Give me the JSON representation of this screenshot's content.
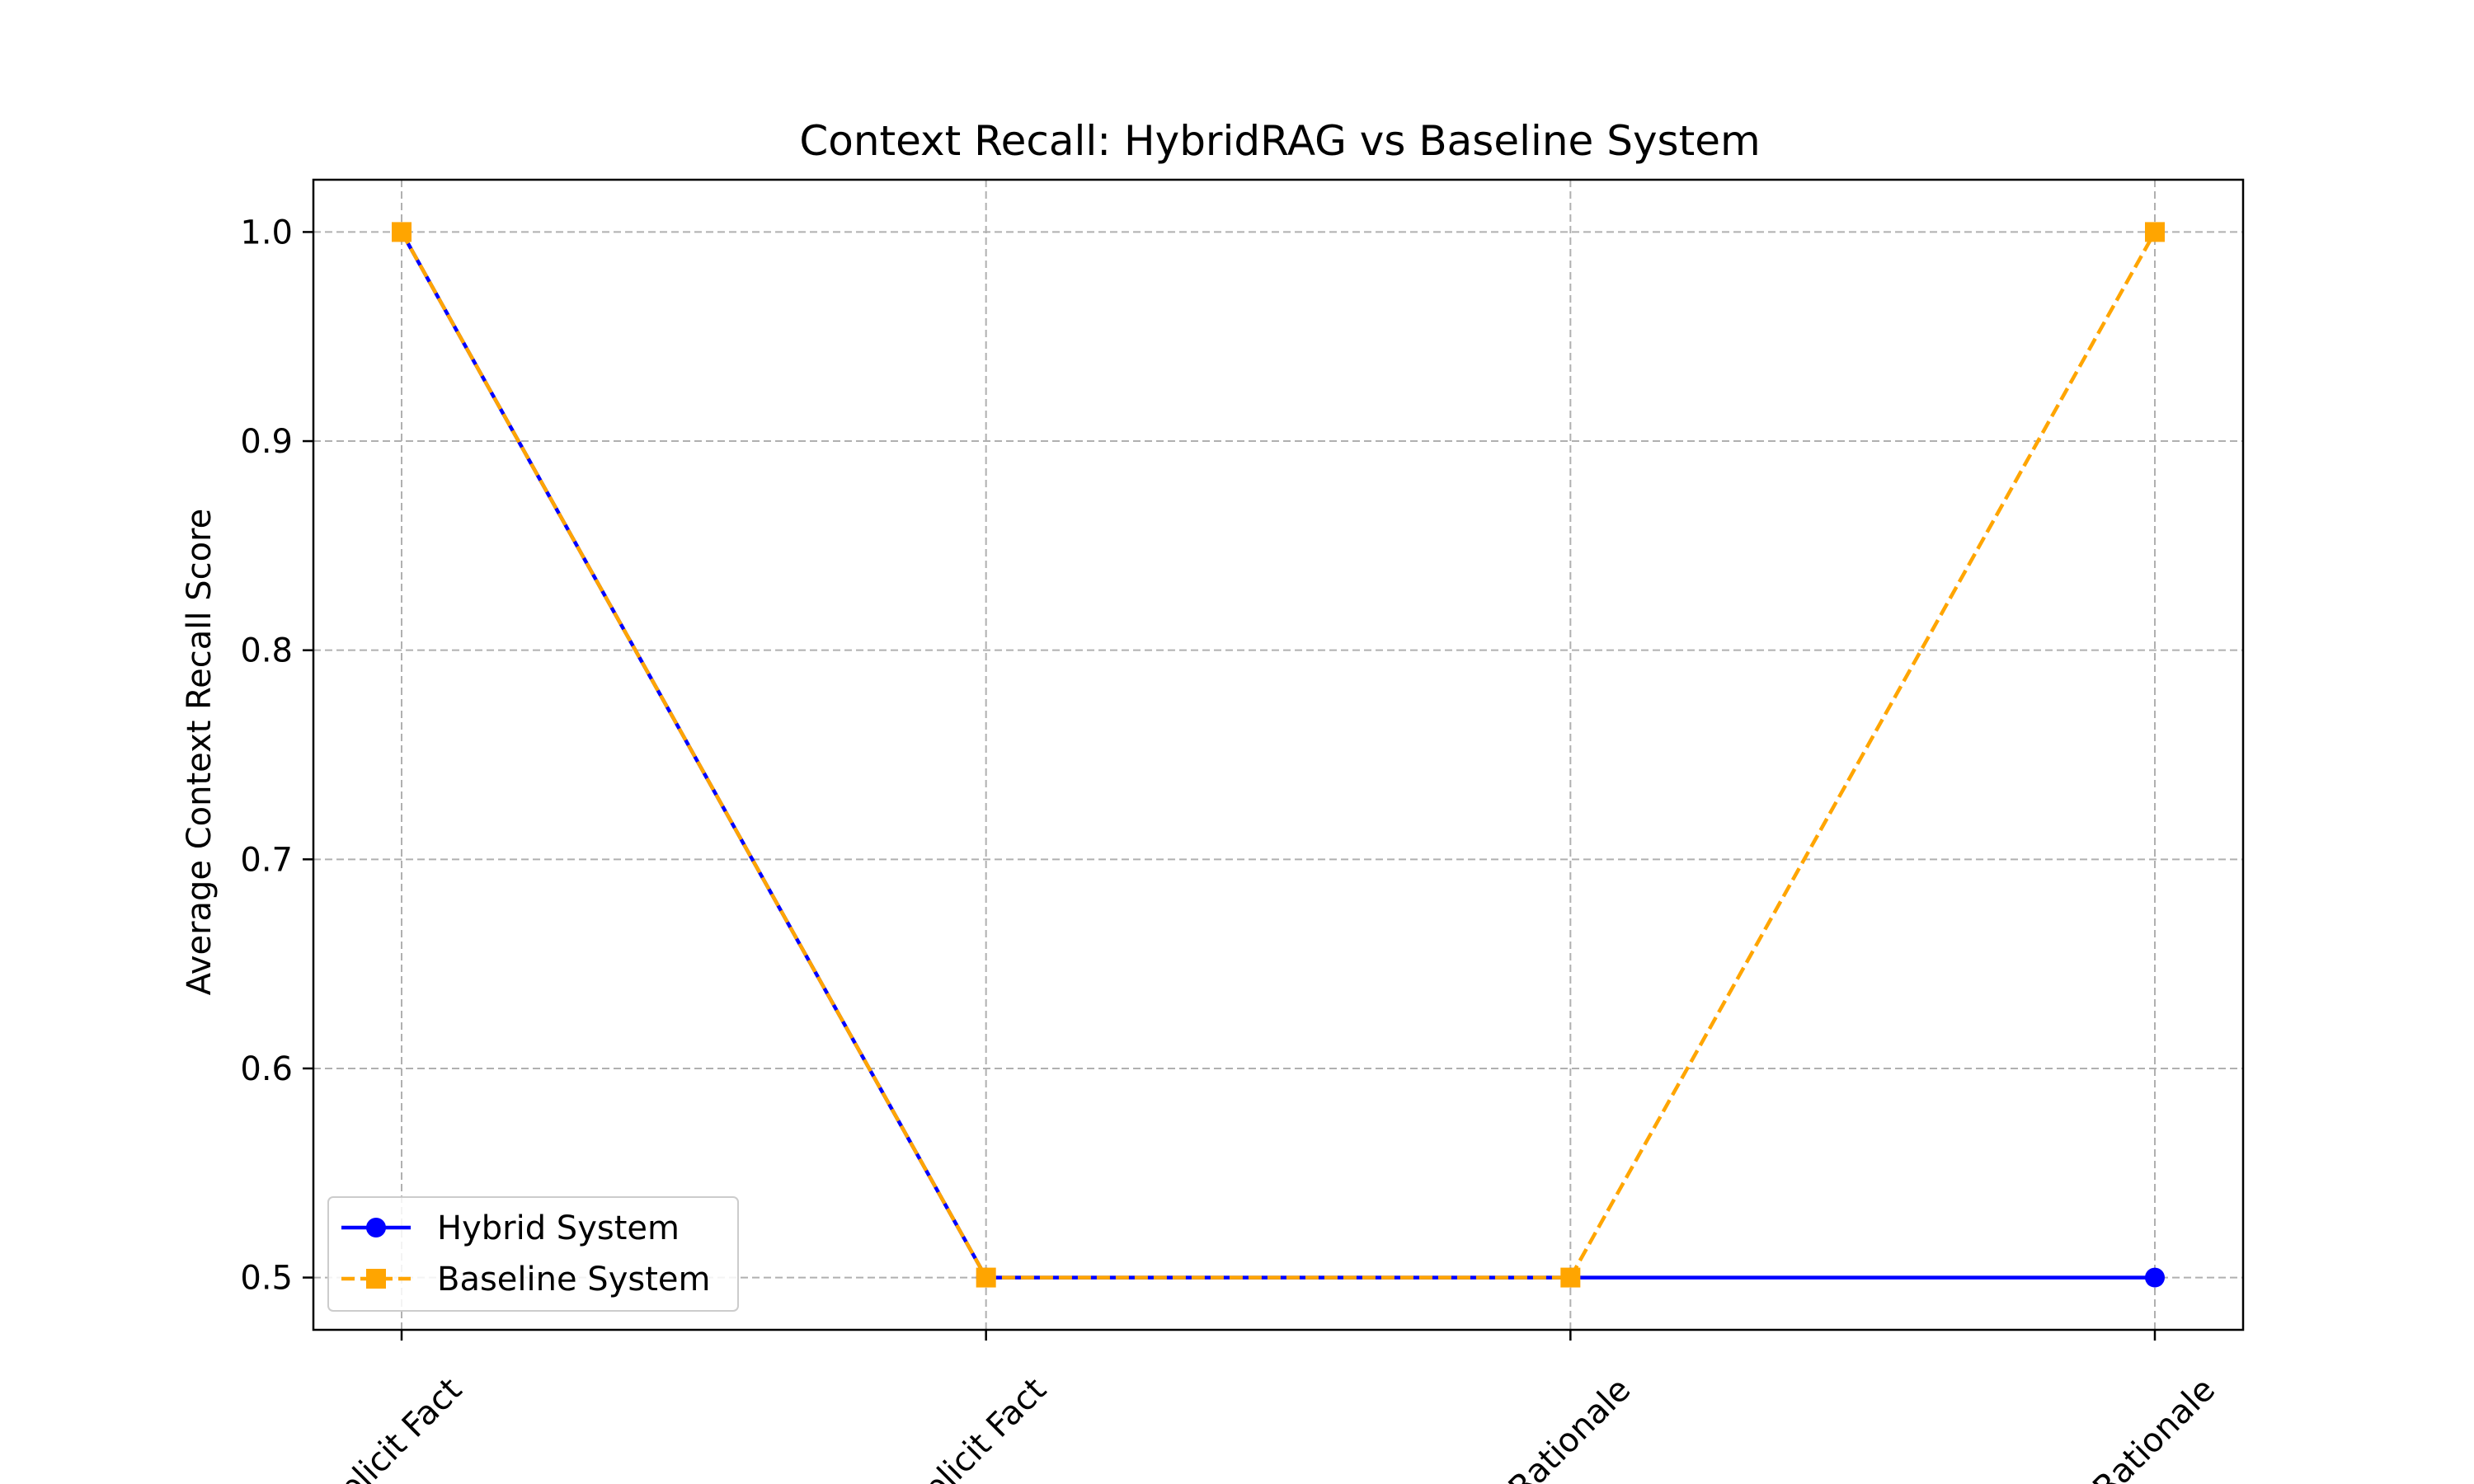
{
  "chart_data": {
    "type": "line",
    "title": "Context Recall: HybridRAG vs Baseline System",
    "xlabel": "",
    "ylabel": "Average Context Recall Score",
    "categories": [
      "Explicit Fact",
      "Implicit Fact",
      "Interpretable Rationale",
      "Hidden Rationale"
    ],
    "x_tick_labels_visible": [
      "Explicit Fact",
      "mplicit Fact",
      "n Rationale",
      "e Rationale"
    ],
    "ylim": [
      0.475,
      1.025
    ],
    "yticks": [
      0.5,
      0.6,
      0.7,
      0.8,
      0.9,
      1.0
    ],
    "ytick_labels": [
      "0.5",
      "0.6",
      "0.7",
      "0.8",
      "0.9",
      "1.0"
    ],
    "grid": true,
    "legend_position": "lower-left",
    "series": [
      {
        "name": "Hybrid System",
        "values": [
          1.0,
          0.5,
          0.5,
          0.5
        ],
        "color": "#0000ff",
        "marker": "circle",
        "linestyle": "solid"
      },
      {
        "name": "Baseline System",
        "values": [
          1.0,
          0.5,
          0.5,
          1.0
        ],
        "color": "#ffa500",
        "marker": "square",
        "linestyle": "dashed"
      }
    ]
  }
}
